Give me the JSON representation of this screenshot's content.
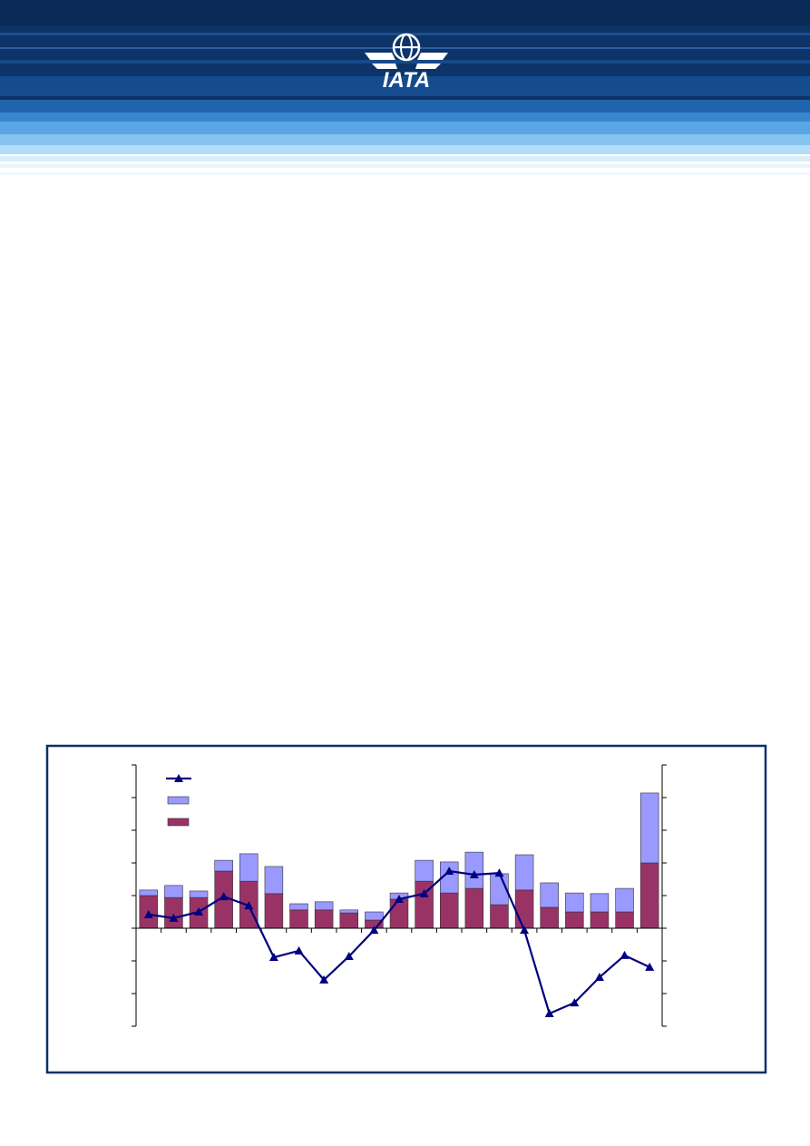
{
  "header": {
    "logo_text": "IATA"
  },
  "chart_data": {
    "type": "bar",
    "stacked": true,
    "categories": [
      null,
      null,
      null,
      null,
      null,
      null,
      null,
      null,
      null,
      null,
      null,
      null,
      null,
      null,
      null,
      null,
      null,
      null,
      null,
      null,
      null
    ],
    "series": [
      {
        "color": "#993366",
        "values": [
          1.0,
          0.94,
          0.94,
          1.75,
          1.44,
          1.06,
          0.56,
          0.56,
          0.47,
          0.25,
          0.89,
          1.44,
          1.08,
          1.22,
          0.72,
          1.17,
          0.64,
          0.5,
          0.5,
          0.5,
          2.0
        ]
      },
      {
        "color": "#9999ff",
        "values": [
          0.17,
          0.37,
          0.2,
          0.33,
          0.84,
          0.83,
          0.19,
          0.25,
          0.09,
          0.25,
          0.19,
          0.64,
          0.95,
          1.11,
          0.95,
          1.08,
          0.75,
          0.58,
          0.56,
          0.72,
          2.14
        ]
      },
      {
        "type": "line",
        "axis": "y2",
        "marker": "triangle",
        "color": "#000080",
        "values": [
          0.42,
          0.31,
          0.5,
          0.97,
          0.69,
          -0.89,
          -0.69,
          -1.58,
          -0.86,
          -0.06,
          0.89,
          1.06,
          1.75,
          1.64,
          1.69,
          -0.06,
          -2.61,
          -2.28,
          -1.5,
          -0.83,
          -1.19
        ]
      }
    ],
    "ylim": [
      -3,
      5
    ],
    "yticks": [
      -3,
      -2,
      -1,
      0,
      1,
      2,
      3,
      4,
      5
    ],
    "y2lim": [
      -3,
      5
    ],
    "y2ticks": [
      -3,
      -2,
      -1,
      0,
      1,
      2,
      3,
      4,
      5
    ]
  }
}
